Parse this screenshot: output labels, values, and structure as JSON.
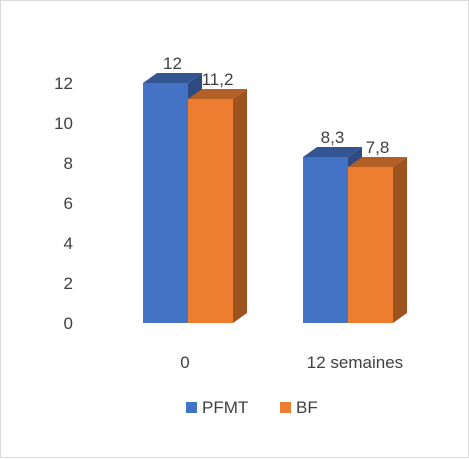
{
  "chart_data": {
    "type": "bar",
    "style": "3d-clustered-column",
    "categories": [
      "0",
      "12 semaines"
    ],
    "series": [
      {
        "name": "PFMT",
        "values": [
          12,
          8.3
        ],
        "labels": [
          "12",
          "8,3"
        ],
        "color": "#4472c4"
      },
      {
        "name": "BF",
        "values": [
          11.2,
          7.8
        ],
        "labels": [
          "11,2",
          "7,8"
        ],
        "color": "#ed7d31"
      }
    ],
    "ylim": [
      0,
      12
    ],
    "yticks": [
      "0",
      "2",
      "4",
      "6",
      "8",
      "10",
      "12"
    ],
    "ytick_values": [
      0,
      2,
      4,
      6,
      8,
      10,
      12
    ],
    "grid": false,
    "legend_position": "bottom",
    "title": "",
    "xlabel": "",
    "ylabel": ""
  }
}
